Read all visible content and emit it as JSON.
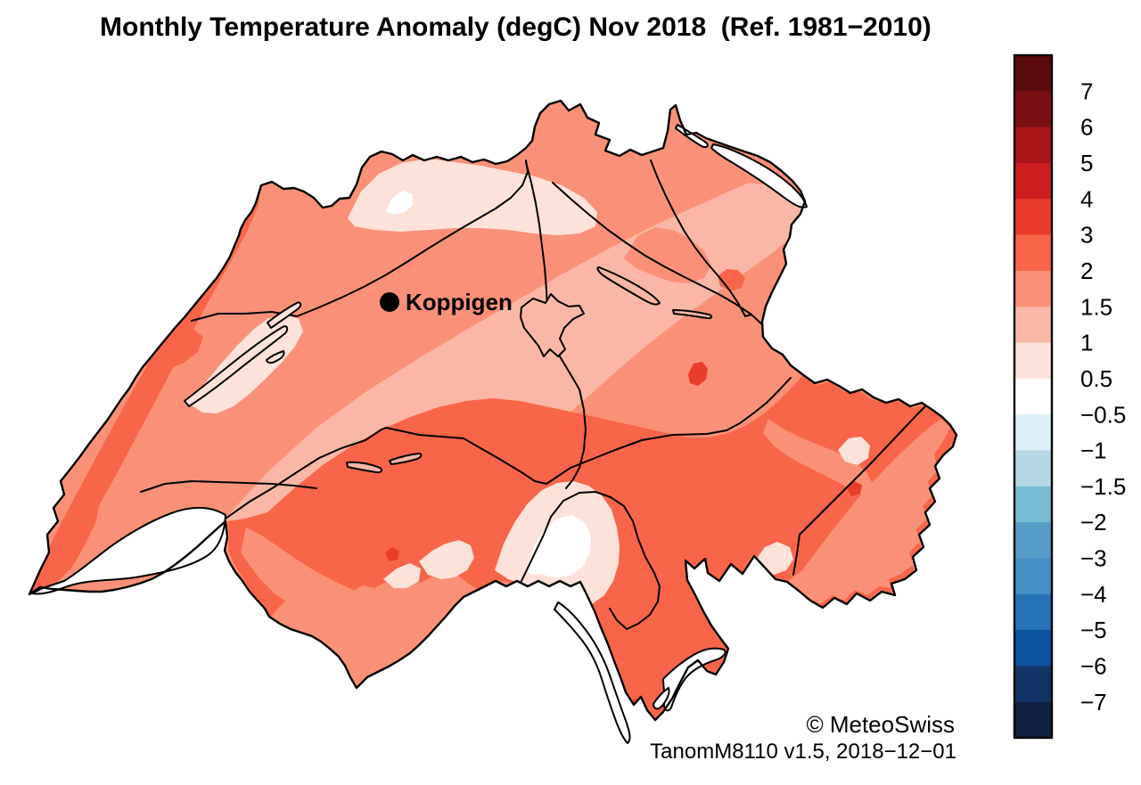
{
  "title": "Monthly Temperature Anomaly (degC) Nov 2018  (Ref. 1981−2010)",
  "map": {
    "region": "Switzerland",
    "station_label": "Koppigen",
    "palette": {
      "band_0_5_to_1": "#fde2da",
      "band_1_to_1_5": "#fab7a6",
      "band_1_5_to_2": "#fa9177",
      "band_2_to_3": "#f96549",
      "band_3_to_4": "#e93c2b",
      "white_band": "#ffffff",
      "water": "#ffffff",
      "water_pale": "#fde2da",
      "water_pink": "#fab7a6",
      "border": "#000000",
      "marker": "#000000",
      "background": "#ffffff"
    }
  },
  "colorbar": {
    "ticks": [
      "7",
      "6",
      "5",
      "4",
      "3",
      "2",
      "1.5",
      "1",
      "0.5",
      "−0.5",
      "−1",
      "−1.5",
      "−2",
      "−3",
      "−4",
      "−5",
      "−6",
      "−7"
    ],
    "colors": [
      "#5c0b0d",
      "#7b1013",
      "#a91519",
      "#cb1f1f",
      "#e93c2b",
      "#f96549",
      "#fa9177",
      "#fab7a6",
      "#fde2da",
      "#ffffff",
      "#ddeff8",
      "#b5d8e6",
      "#77bcd6",
      "#569cc8",
      "#4390c7",
      "#2473b6",
      "#0c52a1",
      "#123567",
      "#102144"
    ]
  },
  "attribution": {
    "copyright": "© MeteoSwiss",
    "version_line": "TanomM8110 v1.5, 2018−12−01"
  }
}
